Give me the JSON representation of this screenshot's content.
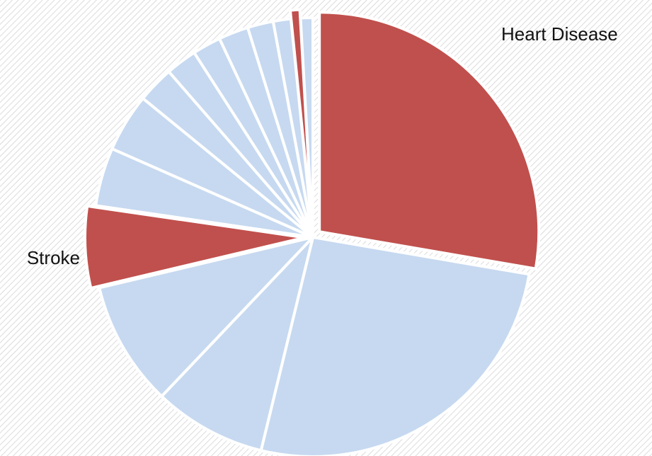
{
  "chart_data": {
    "type": "pie",
    "categories": [
      "Heart Disease",
      null,
      null,
      null,
      "Stroke",
      null,
      null,
      null,
      null,
      null,
      null,
      null,
      null,
      null,
      null
    ],
    "values": [
      27.7,
      26.1,
      8.3,
      9.2,
      6.0,
      4.3,
      4.3,
      2.7,
      2.3,
      2.1,
      2.2,
      1.9,
      1.3,
      0.7,
      0.9
    ],
    "colors": [
      "#c0504d",
      "#c6d9f0",
      "#c6d9f0",
      "#c6d9f0",
      "#c0504d",
      "#c6d9f0",
      "#c6d9f0",
      "#c6d9f0",
      "#c6d9f0",
      "#c6d9f0",
      "#c6d9f0",
      "#c6d9f0",
      "#c6d9f0",
      "#c0504d",
      "#c6d9f0"
    ]
  }
}
